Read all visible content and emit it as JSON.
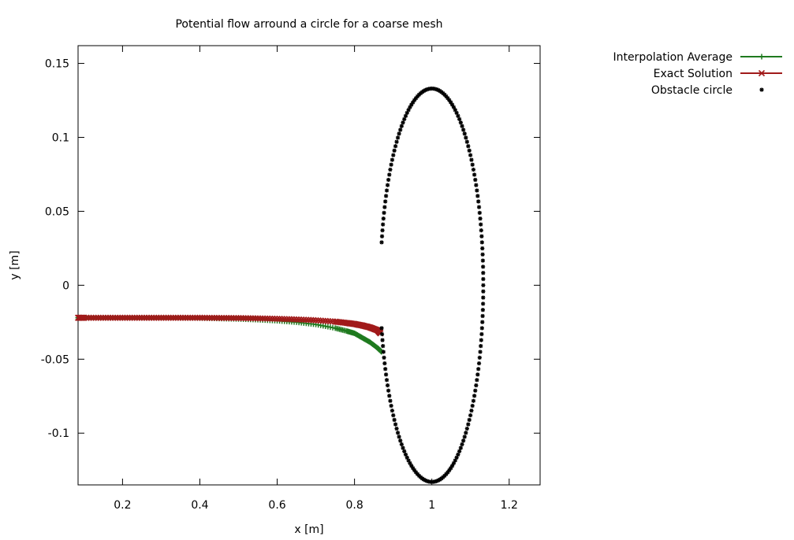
{
  "chart_data": {
    "type": "scatter",
    "title": "Potential flow arround a circle for a coarse mesh",
    "xlabel": "x [m]",
    "ylabel": "y [m]",
    "xlim": [
      0.085,
      1.28
    ],
    "ylim": [
      -0.135,
      0.162
    ],
    "grid": false,
    "legend_position": "top-right, outside plot",
    "x_ticks": [
      {
        "value": 0.2,
        "label": "0.2"
      },
      {
        "value": 0.4,
        "label": "0.4"
      },
      {
        "value": 0.6,
        "label": "0.6"
      },
      {
        "value": 0.8,
        "label": "0.8"
      },
      {
        "value": 1.0,
        "label": "1"
      },
      {
        "value": 1.2,
        "label": "1.2"
      }
    ],
    "y_ticks": [
      {
        "value": 0.15,
        "label": "0.15"
      },
      {
        "value": 0.1,
        "label": "0.1"
      },
      {
        "value": 0.05,
        "label": "0.05"
      },
      {
        "value": 0,
        "label": "0"
      },
      {
        "value": -0.05,
        "label": "-0.05"
      },
      {
        "value": -0.1,
        "label": "-0.1"
      }
    ],
    "series": [
      {
        "name": "Interpolation Average",
        "marker": "plus",
        "line": true,
        "color": "#1f7a1f",
        "x": [
          0.085,
          0.1,
          0.15,
          0.2,
          0.25,
          0.3,
          0.35,
          0.4,
          0.45,
          0.5,
          0.55,
          0.6,
          0.65,
          0.7,
          0.75,
          0.78,
          0.8,
          0.82,
          0.84,
          0.86,
          0.87
        ],
        "y": [
          -0.022,
          -0.022,
          -0.022,
          -0.022,
          -0.022,
          -0.022,
          -0.022,
          -0.0222,
          -0.0225,
          -0.0228,
          -0.0233,
          -0.024,
          -0.025,
          -0.0265,
          -0.029,
          -0.031,
          -0.0325,
          -0.0355,
          -0.0385,
          -0.0425,
          -0.045
        ]
      },
      {
        "name": "Exact Solution",
        "marker": "cross",
        "line": true,
        "color": "#a11a1a",
        "x": [
          0.085,
          0.1,
          0.15,
          0.2,
          0.25,
          0.3,
          0.35,
          0.4,
          0.45,
          0.5,
          0.55,
          0.6,
          0.65,
          0.7,
          0.75,
          0.78,
          0.8,
          0.82,
          0.84,
          0.86,
          0.867
        ],
        "y": [
          -0.022,
          -0.022,
          -0.022,
          -0.022,
          -0.022,
          -0.022,
          -0.022,
          -0.022,
          -0.0221,
          -0.0222,
          -0.0224,
          -0.0227,
          -0.0231,
          -0.0237,
          -0.0246,
          -0.0255,
          -0.0262,
          -0.0272,
          -0.0285,
          -0.0305,
          -0.0325
        ]
      },
      {
        "name": "Obstacle circle",
        "marker": "star",
        "line": false,
        "color": "#000000",
        "parametric": {
          "cx": 1.0,
          "cy": 0.0,
          "r": 0.133,
          "points": 200,
          "gap_left_deg": [
            168,
            192
          ]
        }
      }
    ]
  }
}
